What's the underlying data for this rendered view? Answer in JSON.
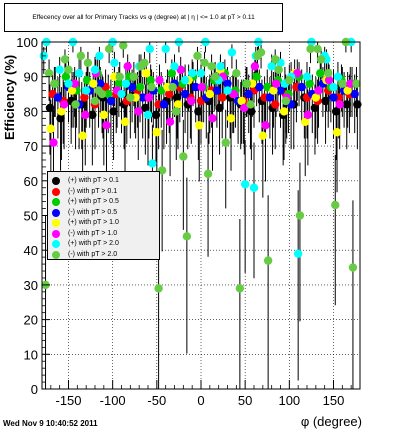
{
  "chart_data": {
    "type": "scatter",
    "title": "Effecency over all for Primary Tracks vs φ (degree) at | η | <= 1.0 at pT > 0.11",
    "xlabel": "φ (degree)",
    "ylabel": "Efficiency (%)",
    "xlim": [
      -180,
      180
    ],
    "ylim": [
      0,
      100
    ],
    "xticks": [
      -150,
      -100,
      -50,
      0,
      50,
      100,
      150
    ],
    "xtick_labels": [
      "-150",
      "-100",
      "-50",
      "0",
      "50",
      "100",
      "150"
    ],
    "yticks": [
      0,
      10,
      20,
      30,
      40,
      50,
      60,
      70,
      80,
      90,
      100
    ],
    "ytick_labels": [
      "0",
      "10",
      "20",
      "30",
      "40",
      "50",
      "60",
      "70",
      "80",
      "90",
      "100"
    ],
    "grid": true,
    "legend_position": "middle-left",
    "series": [
      {
        "name": "(+) with pT > 0.1",
        "color": "#000000",
        "x": [
          -171,
          -159,
          -147,
          -135,
          -123,
          -111,
          -99,
          -87,
          -75,
          -63,
          -51,
          -39,
          -27,
          -15,
          -3,
          9,
          21,
          33,
          45,
          57,
          69,
          81,
          93,
          105,
          117,
          129,
          141,
          153,
          165,
          177
        ],
        "y": [
          81,
          78,
          83,
          82,
          79,
          84,
          80,
          82,
          85,
          81,
          79,
          83,
          84,
          82,
          80,
          83,
          81,
          84,
          82,
          80,
          83,
          81,
          79,
          82,
          84,
          81,
          83,
          80,
          82,
          82
        ]
      },
      {
        "name": "(-) with pT > 0.1",
        "color": "#ff0000",
        "x": [
          -168,
          -156,
          -144,
          -132,
          -120,
          -108,
          -96,
          -84,
          -72,
          -60,
          -48,
          -36,
          -24,
          -12,
          0,
          12,
          24,
          36,
          48,
          60,
          72,
          84,
          96,
          108,
          120,
          132,
          144,
          156,
          168
        ],
        "y": [
          85,
          83,
          86,
          84,
          82,
          87,
          85,
          83,
          86,
          84,
          82,
          85,
          87,
          84,
          83,
          86,
          84,
          85,
          83,
          86,
          84,
          82,
          85,
          87,
          84,
          83,
          86,
          84,
          85
        ]
      },
      {
        "name": "(+) with pT > 0.5",
        "color": "#00cc00",
        "x": [
          -165,
          -153,
          -141,
          -129,
          -117,
          -105,
          -93,
          -81,
          -69,
          -57,
          -45,
          -33,
          -21,
          -9,
          3,
          15,
          27,
          39,
          51,
          63,
          75,
          87,
          99,
          111,
          123,
          135,
          147,
          159,
          171
        ],
        "y": [
          88,
          90,
          86,
          89,
          91,
          85,
          88,
          90,
          87,
          89,
          86,
          91,
          88,
          90,
          87,
          89,
          91,
          86,
          88,
          90,
          87,
          89,
          85,
          90,
          88,
          91,
          87,
          89,
          88
        ]
      },
      {
        "name": "(-) with pT > 0.5",
        "color": "#0000ff",
        "x": [
          -162,
          -150,
          -138,
          -126,
          -114,
          -102,
          -90,
          -78,
          -66,
          -54,
          -42,
          -30,
          -18,
          -6,
          6,
          18,
          30,
          42,
          54,
          66,
          78,
          90,
          102,
          114,
          126,
          138,
          150,
          162,
          174
        ],
        "y": [
          84,
          87,
          82,
          86,
          88,
          83,
          85,
          87,
          84,
          86,
          82,
          88,
          85,
          87,
          84,
          86,
          88,
          83,
          85,
          87,
          84,
          86,
          82,
          87,
          85,
          88,
          84,
          86,
          85
        ]
      },
      {
        "name": "(+) with pT > 1.0",
        "color": "#ffff00",
        "x": [
          -170,
          -158,
          -146,
          -134,
          -122,
          -110,
          -98,
          -86,
          -74,
          -62,
          -50,
          -38,
          -26,
          -14,
          -2,
          10,
          22,
          34,
          46,
          58,
          70,
          82,
          94,
          106,
          118,
          130,
          142,
          154,
          166
        ],
        "y": [
          75,
          80,
          86,
          73,
          88,
          79,
          90,
          77,
          84,
          91,
          74,
          87,
          82,
          89,
          76,
          85,
          92,
          78,
          83,
          88,
          73,
          86,
          80,
          91,
          77,
          84,
          89,
          74,
          86
        ]
      },
      {
        "name": "(-) with pT > 1.0",
        "color": "#ff00ff",
        "x": [
          -167,
          -155,
          -143,
          -131,
          -119,
          -107,
          -95,
          -83,
          -71,
          -59,
          -47,
          -35,
          -23,
          -11,
          1,
          13,
          25,
          37,
          49,
          61,
          73,
          85,
          97,
          109,
          121,
          133,
          145,
          157,
          169
        ],
        "y": [
          71,
          82,
          88,
          79,
          91,
          76,
          86,
          93,
          80,
          84,
          89,
          77,
          92,
          83,
          87,
          78,
          90,
          85,
          81,
          93,
          76,
          88,
          84,
          91,
          79,
          86,
          89,
          82,
          88
        ]
      },
      {
        "name": "(+) with pT > 2.0",
        "color": "#00ffff",
        "x": [
          -175,
          -160,
          -145,
          -130,
          -115,
          -100,
          -85,
          -70,
          -55,
          -40,
          -25,
          -10,
          5,
          20,
          35,
          50,
          65,
          80,
          95,
          110,
          125,
          140,
          155,
          170,
          -150,
          -120,
          -90,
          -60,
          -30,
          0,
          30,
          60,
          90,
          120,
          150,
          -178,
          -138,
          -98,
          -58,
          -18,
          22,
          62,
          102,
          142
        ],
        "y": [
          100,
          92,
          100,
          86,
          96,
          100,
          88,
          93,
          65,
          98,
          100,
          91,
          100,
          89,
          97,
          59,
          100,
          93,
          88,
          39,
          100,
          96,
          90,
          100,
          88,
          92,
          85,
          79,
          93,
          91,
          86,
          58,
          94,
          90,
          87,
          96,
          91,
          94,
          98,
          89,
          93,
          96,
          90,
          95
        ]
      },
      {
        "name": "(-) with pT > 2.0",
        "color": "#66cc44",
        "x": [
          -176,
          -166,
          -154,
          -142,
          -128,
          -116,
          -104,
          -92,
          -80,
          -68,
          -56,
          -48,
          -44,
          -28,
          -16,
          -4,
          8,
          16,
          28,
          44,
          52,
          64,
          76,
          88,
          100,
          112,
          124,
          136,
          152,
          160,
          172,
          -172,
          -136,
          -112,
          -88,
          -64,
          -20,
          4,
          40,
          68,
          96,
          132,
          164,
          -150,
          -120,
          -76,
          -32,
          12,
          56,
          84,
          144,
          176
        ],
        "y": [
          30,
          88,
          95,
          82,
          94,
          86,
          98,
          90,
          84,
          93,
          87,
          29,
          63,
          80,
          44,
          96,
          62,
          90,
          71,
          29,
          88,
          96,
          37,
          92,
          89,
          50,
          98,
          95,
          53,
          88,
          35,
          91,
          96,
          85,
          99,
          94,
          67,
          94,
          91,
          97,
          83,
          98,
          100,
          92,
          83,
          90,
          87,
          93,
          82,
          95,
          91,
          88
        ]
      }
    ],
    "footer_text": "Wed Nov  9 10:40:52 2011"
  }
}
